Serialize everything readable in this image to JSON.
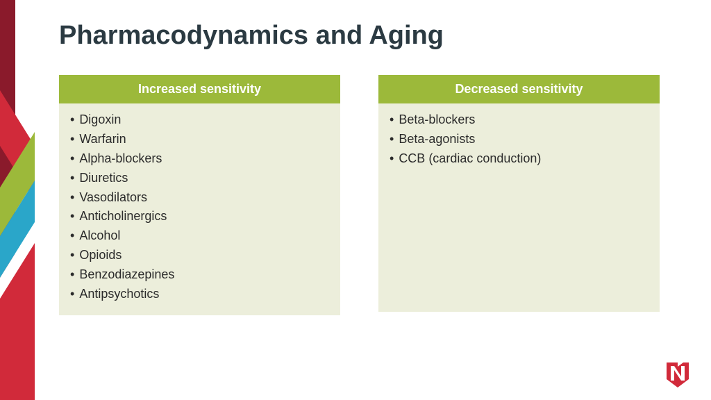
{
  "title": {
    "text": "Pharmacodynamics and Aging",
    "color": "#2b3a42",
    "fontsize": 38
  },
  "layout": {
    "background_color": "#ffffff",
    "header_bg": "#9cb93a",
    "header_text_color": "#ffffff",
    "body_bg": "#eceedb",
    "body_text_color": "#2b2b2b",
    "accent_colors": {
      "dark_red": "#8a1a2b",
      "red": "#d12a3a",
      "olive": "#9cb93a",
      "cyan": "#2aa6c9",
      "white": "#ffffff"
    }
  },
  "panels": {
    "left": {
      "header": "Increased sensitivity",
      "items": [
        "Digoxin",
        "Warfarin",
        "Alpha-blockers",
        "Diuretics",
        "Vasodilators",
        "Anticholinergics",
        "Alcohol",
        "Opioids",
        "Benzodiazepines",
        "Antipsychotics"
      ]
    },
    "right": {
      "header": "Decreased sensitivity",
      "items": [
        "Beta-blockers",
        "Beta-agonists",
        "CCB (cardiac conduction)"
      ]
    }
  },
  "logo": {
    "primary": "#d12a3a",
    "white": "#ffffff"
  }
}
